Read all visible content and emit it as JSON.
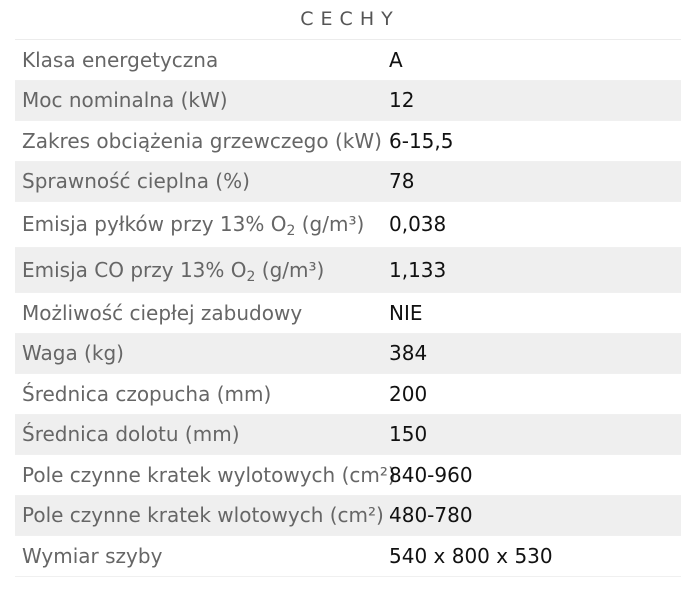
{
  "header": {
    "title": "CECHY"
  },
  "specs": [
    {
      "label": "Klasa energetyczna",
      "value": "A"
    },
    {
      "label": "Moc nominalna (kW)",
      "value": "12"
    },
    {
      "label": "Zakres obciążenia grzewczego (kW)",
      "value": "6-15,5"
    },
    {
      "label": "Sprawność cieplna (%)",
      "value": "78"
    },
    {
      "label_pre": "Emisja pyłków przy 13% O",
      "label_sub": "2",
      "label_post": " (g/m³)",
      "value": "0,038"
    },
    {
      "label_pre": "Emisja CO przy 13% O",
      "label_sub": "2",
      "label_post": " (g/m³)",
      "value": "1,133"
    },
    {
      "label": "Możliwość ciepłej zabudowy",
      "value": "NIE"
    },
    {
      "label": "Waga (kg)",
      "value": "384"
    },
    {
      "label": "Średnica czopucha (mm)",
      "value": "200"
    },
    {
      "label": "Średnica dolotu (mm)",
      "value": "150"
    },
    {
      "label": "Pole czynne kratek wylotowych (cm²)",
      "value": "840-960"
    },
    {
      "label": "Pole czynne kratek wlotowych (cm²)",
      "value": "480-780"
    },
    {
      "label": "Wymiar szyby",
      "value": "540 x 800 x 530"
    }
  ],
  "colors": {
    "row_alt_background": "#efefef",
    "label_text": "#666666",
    "value_text": "#111111"
  }
}
